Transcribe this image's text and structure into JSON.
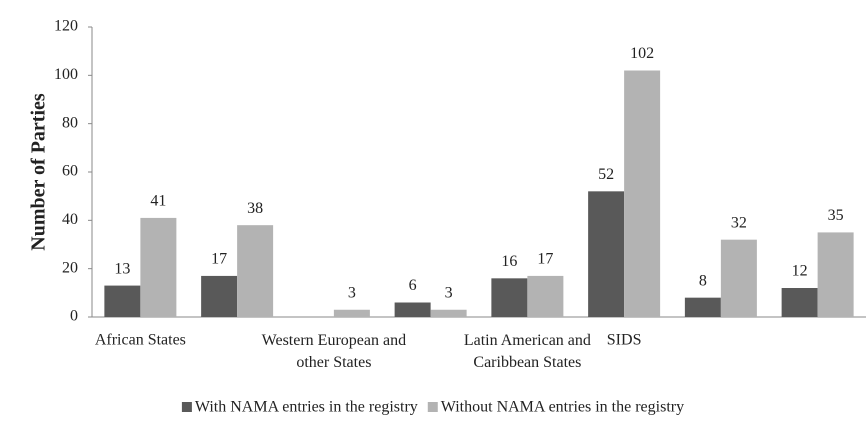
{
  "chart_data": {
    "type": "bar",
    "y_label": "Number of Parties",
    "categories": [
      "African States",
      null,
      "Western European and other States",
      null,
      "Latin American and Caribbean States",
      "SIDS",
      null,
      null
    ],
    "series": [
      {
        "name": "With NAMA entries in the registry",
        "color": "#595959",
        "values": [
          13,
          17,
          null,
          6,
          16,
          52,
          8,
          12
        ]
      },
      {
        "name": "Without NAMA entries in the registry",
        "color": "#b3b3b3",
        "values": [
          41,
          38,
          3,
          3,
          17,
          102,
          32,
          35
        ]
      }
    ],
    "ylim": [
      0,
      120
    ],
    "yticks": [
      0,
      20,
      40,
      60,
      80,
      100,
      120
    ],
    "grid": false,
    "legend": "bottom"
  }
}
